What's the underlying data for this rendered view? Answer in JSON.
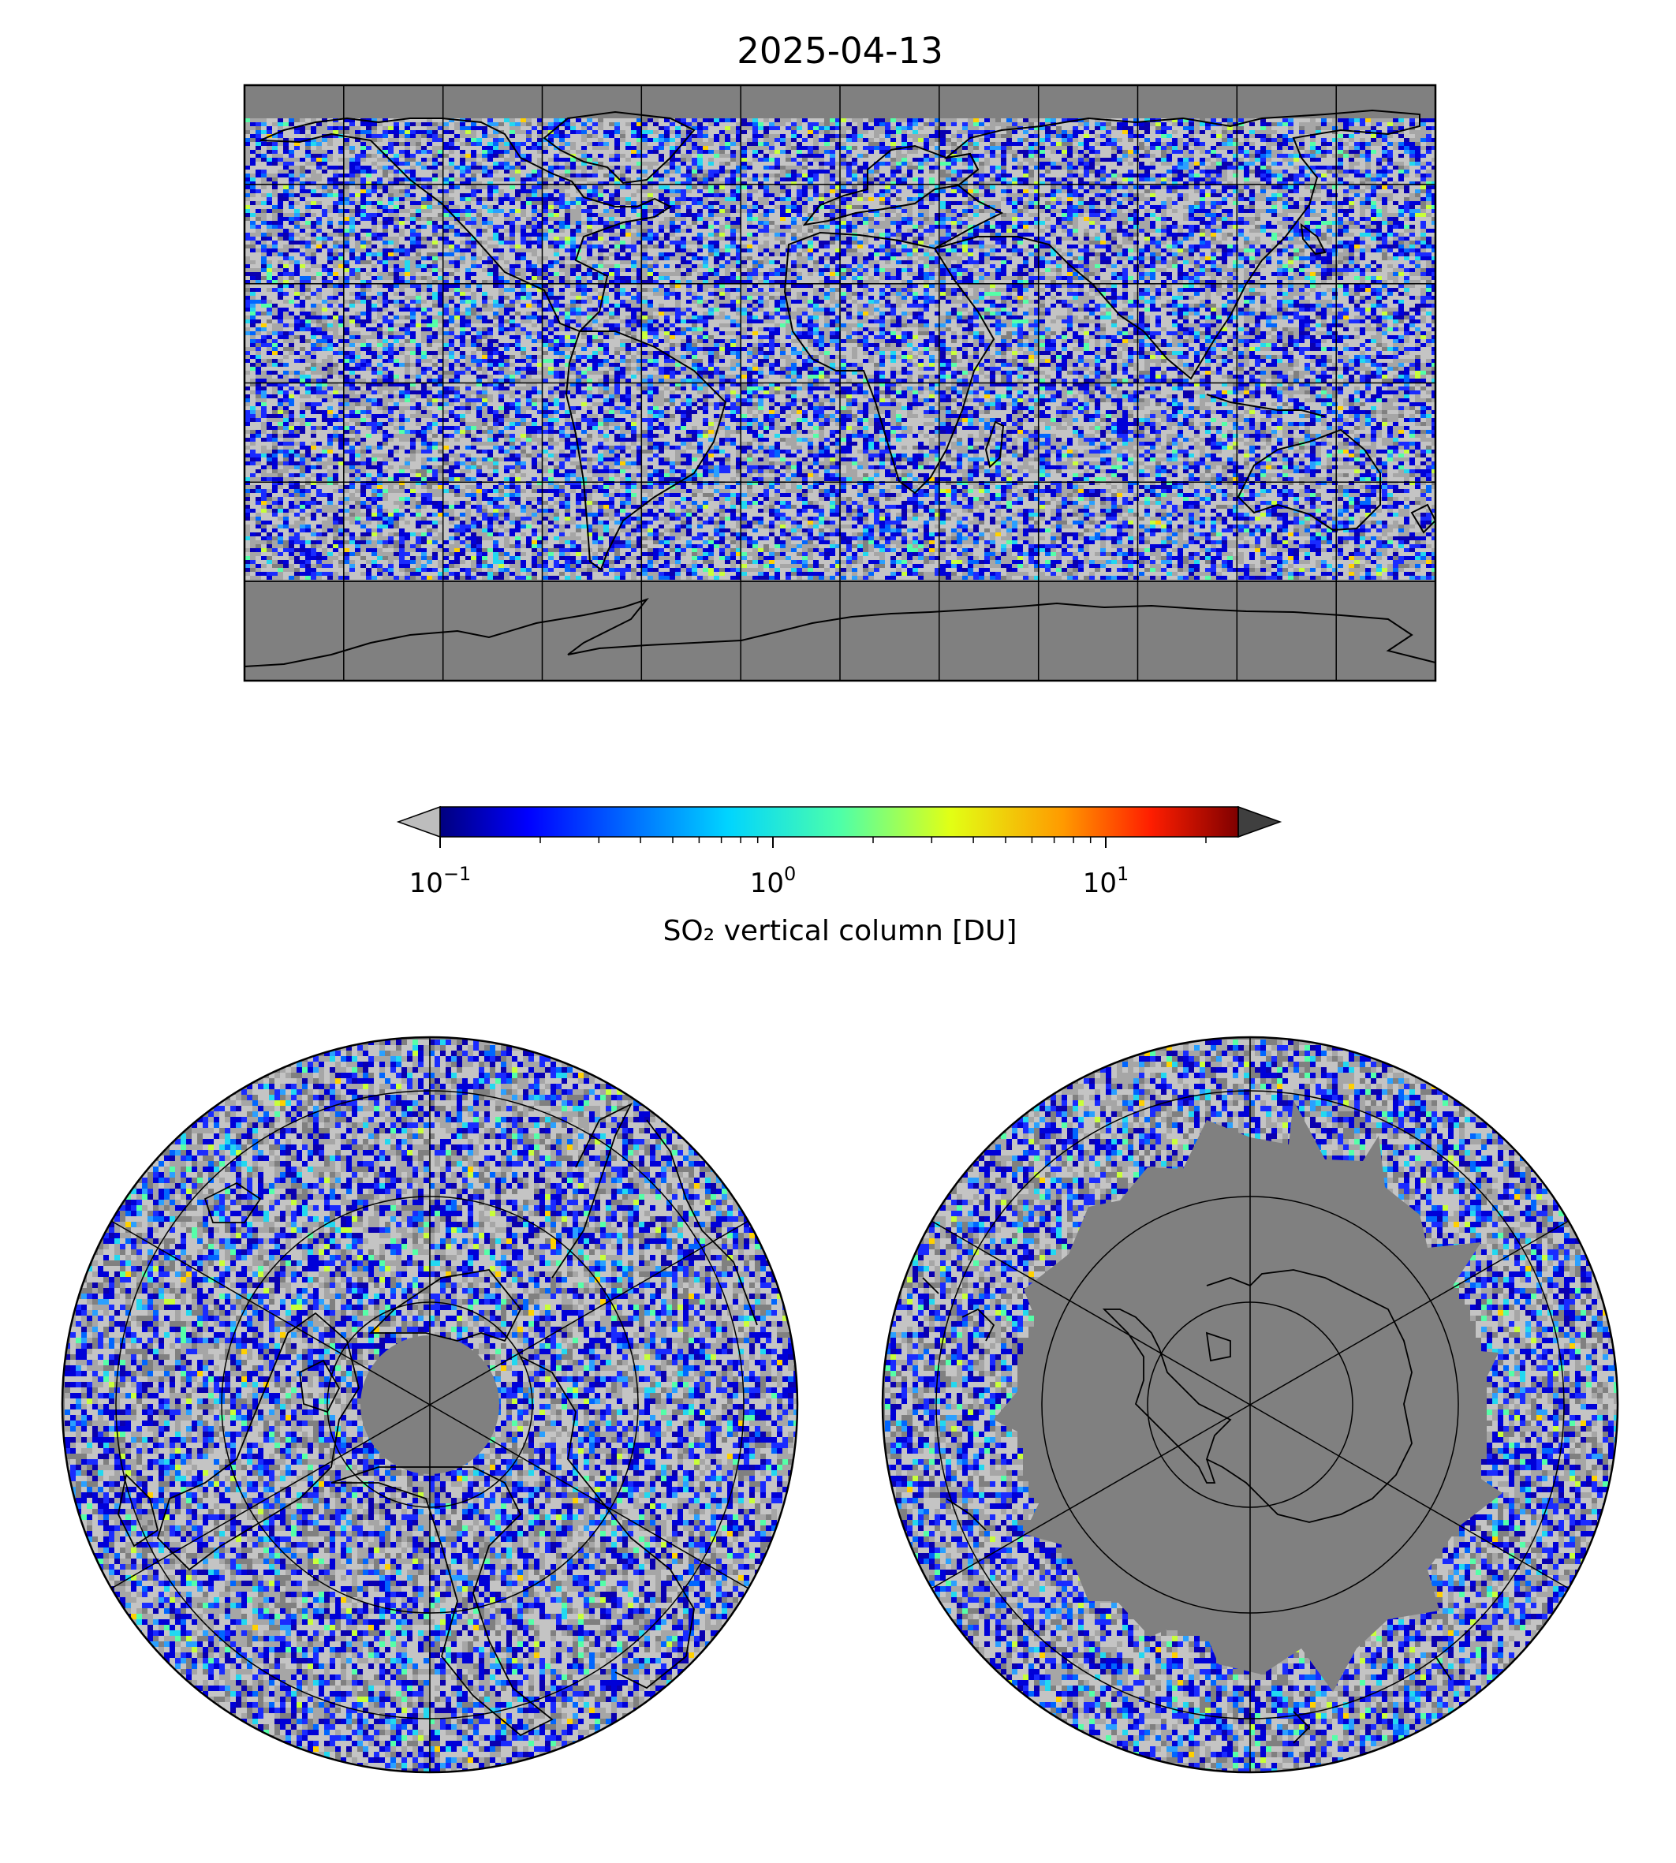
{
  "title": "2025-04-13",
  "colorbar": {
    "label": "SO₂ vertical column [DU]",
    "scale": "log",
    "range": [
      0.1,
      25
    ],
    "extend": "both",
    "colormap": "jet",
    "under_color": "#bdbdbd",
    "over_color": "#3f3f3f",
    "ticks": [
      {
        "base": "10",
        "exp": "−1"
      },
      {
        "base": "10",
        "exp": "0"
      },
      {
        "base": "10",
        "exp": "1"
      }
    ]
  },
  "maps": {
    "global": {
      "projection": "plate-carree",
      "lon_range": [
        -180,
        180
      ],
      "lat_range": [
        -90,
        90
      ],
      "grid_step_lon": 30,
      "grid_step_lat": 30
    },
    "north_polar": {
      "projection": "north-polar-stereographic",
      "grid_lat": [
        80,
        60,
        40,
        20
      ],
      "meridians_deg": [
        0,
        60,
        120,
        180,
        240,
        300
      ]
    },
    "south_polar": {
      "projection": "south-polar-stereographic",
      "grid_lat": [
        -80,
        -60,
        -40,
        -20
      ],
      "meridians_deg": [
        0,
        60,
        120,
        180,
        240,
        300
      ]
    }
  },
  "colors": {
    "no_data": "#808080",
    "below_range_light": "#c0c0c0",
    "below_range_mid": "#a0a0a0",
    "coastline": "#000000"
  }
}
